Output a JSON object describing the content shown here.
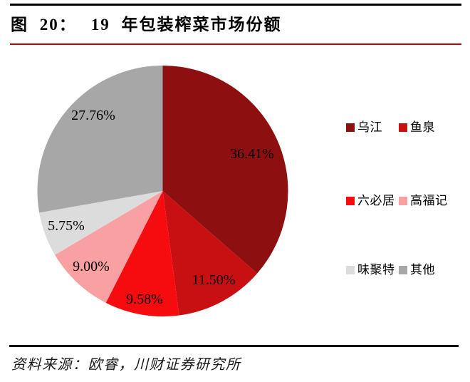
{
  "header": {
    "figure_label": "图 20：",
    "title": "19 年包装榨菜市场份额"
  },
  "footer": {
    "source": "资料来源：欧睿，川财证券研究所"
  },
  "accent": {
    "red_rule": "#c00000"
  },
  "chart_data": {
    "type": "pie",
    "title": "19 年包装榨菜市场份额",
    "start_angle_deg": 0,
    "direction": "clockwise",
    "legend_position": "right",
    "series": [
      {
        "name": "乌江",
        "value": 36.41,
        "color": "#8e0f10"
      },
      {
        "name": "鱼泉",
        "value": 11.5,
        "color": "#c81013"
      },
      {
        "name": "六必居",
        "value": 9.58,
        "color": "#f60c0e"
      },
      {
        "name": "高福记",
        "value": 9.0,
        "color": "#f9a0a3"
      },
      {
        "name": "味聚特",
        "value": 5.75,
        "color": "#dcdcdc"
      },
      {
        "name": "其他",
        "value": 27.76,
        "color": "#a7a7a7"
      }
    ]
  }
}
